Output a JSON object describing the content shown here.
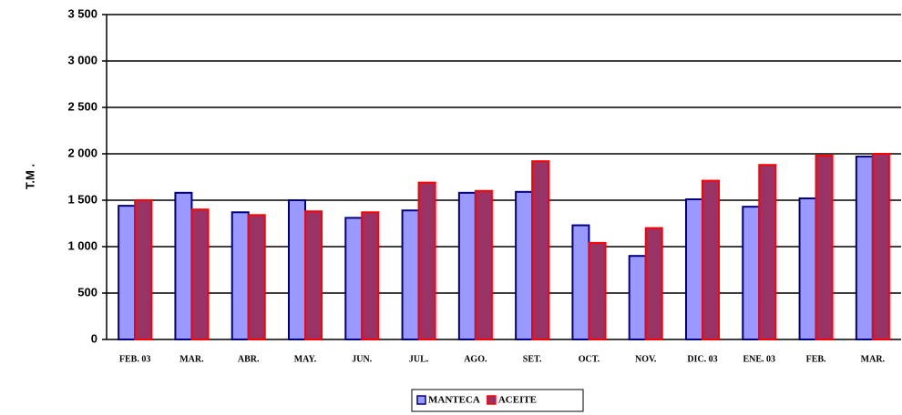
{
  "chart_data": {
    "type": "bar",
    "y_label": "T.M .",
    "categories": [
      "FEB. 03",
      "MAR.",
      "ABR.",
      "MAY.",
      "JUN.",
      "JUL.",
      "AGO.",
      "SET.",
      "OCT.",
      "NOV.",
      "DIC. 03",
      "ENE. 03",
      "FEB.",
      "MAR."
    ],
    "series": [
      {
        "name": "MANTECA",
        "color": "#9999ff",
        "edge": "#000080",
        "values": [
          1440,
          1580,
          1370,
          1500,
          1310,
          1390,
          1580,
          1590,
          1230,
          900,
          1510,
          1430,
          1520,
          1970
        ]
      },
      {
        "name": "ACEITE",
        "color": "#993366",
        "edge": "#ff0000",
        "values": [
          1500,
          1400,
          1340,
          1380,
          1370,
          1690,
          1600,
          1920,
          1040,
          1200,
          1710,
          1880,
          1980,
          2000
        ]
      }
    ],
    "ylim": [
      0,
      3500
    ],
    "yticks": [
      0,
      500,
      {
        "value": 1000,
        "label": "1 000"
      },
      {
        "value": 1500,
        "label": "1 500"
      },
      {
        "value": 2000,
        "label": "2 000"
      },
      {
        "value": 2500,
        "label": "2 500"
      },
      {
        "value": 3000,
        "label": "3 000"
      },
      {
        "value": 3500,
        "label": "3 500"
      }
    ],
    "grid": true,
    "legend": "bottom"
  }
}
